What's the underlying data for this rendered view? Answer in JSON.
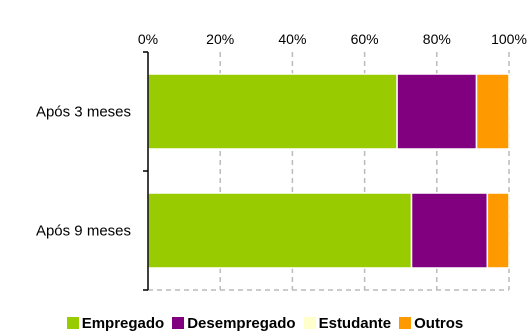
{
  "chart_data": {
    "type": "bar",
    "orientation": "horizontal",
    "stacked": true,
    "categories": [
      "Após 3 meses",
      "Após 9 meses"
    ],
    "series": [
      {
        "name": "Empregado",
        "values": [
          69,
          73
        ],
        "color": "#99cc00"
      },
      {
        "name": "Desempregado",
        "values": [
          22,
          21
        ],
        "color": "#800080"
      },
      {
        "name": "Estudante",
        "values": [
          0,
          0
        ],
        "color": "#ffffcc"
      },
      {
        "name": "Outros",
        "values": [
          9,
          6
        ],
        "color": "#ff9900"
      }
    ],
    "xlim": [
      0,
      100
    ],
    "x_ticks": [
      "0%",
      "20%",
      "40%",
      "60%",
      "80%",
      "100%"
    ],
    "x_axis_position": "top",
    "grid": true,
    "legend_position": "bottom"
  }
}
